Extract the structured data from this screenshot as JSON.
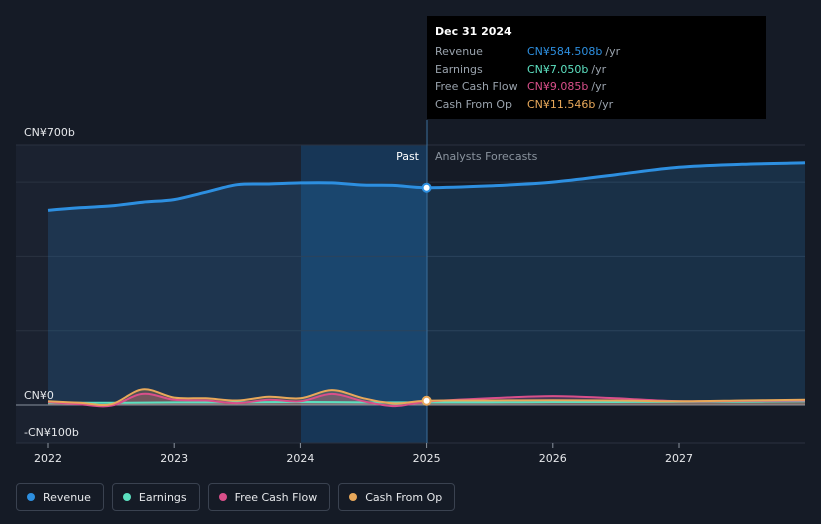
{
  "chart_data": {
    "type": "line",
    "x_ticks": [
      "2022",
      "2023",
      "2024",
      "2025",
      "2026",
      "2027"
    ],
    "y_labels": [
      "CN¥700b",
      "CN¥0",
      "-CN¥100b"
    ],
    "ylim": [
      -100,
      700
    ],
    "region_labels": {
      "past": "Past",
      "forecast": "Analysts Forecasts"
    },
    "series": [
      {
        "name": "Revenue",
        "color": "#2d8fe0",
        "x": [
          2022.0,
          2022.25,
          2022.5,
          2022.75,
          2023.0,
          2023.25,
          2023.5,
          2023.75,
          2024.0,
          2024.25,
          2024.5,
          2024.75,
          2025.0,
          2025.5,
          2026.0,
          2026.5,
          2027.0,
          2027.5,
          2028.0
        ],
        "values": [
          524,
          531,
          536,
          546,
          553,
          573,
          593,
          595,
          598,
          598,
          592,
          591,
          585,
          590,
          600,
          620,
          640,
          648,
          652
        ]
      },
      {
        "name": "Earnings",
        "color": "#5ce0c0",
        "x": [
          2022.0,
          2022.5,
          2023.0,
          2023.5,
          2024.0,
          2024.5,
          2025.0,
          2025.5,
          2026.0,
          2026.5,
          2027.0,
          2027.5,
          2028.0
        ],
        "values": [
          6,
          6,
          7,
          7,
          8,
          7,
          7,
          7,
          8,
          8,
          9,
          9,
          10
        ]
      },
      {
        "name": "Free Cash Flow",
        "color": "#d94f8a",
        "x": [
          2022.0,
          2022.25,
          2022.5,
          2022.75,
          2023.0,
          2023.25,
          2023.5,
          2023.75,
          2024.0,
          2024.25,
          2024.5,
          2024.75,
          2025.0,
          2025.5,
          2026.0,
          2026.5,
          2027.0,
          2027.5,
          2028.0
        ],
        "values": [
          8,
          2,
          -2,
          30,
          14,
          12,
          5,
          14,
          10,
          30,
          10,
          -3,
          9,
          18,
          24,
          18,
          10,
          11,
          12
        ]
      },
      {
        "name": "Cash From Op",
        "color": "#e8a85a",
        "x": [
          2022.0,
          2022.25,
          2022.5,
          2022.75,
          2023.0,
          2023.25,
          2023.5,
          2023.75,
          2024.0,
          2024.25,
          2024.5,
          2024.75,
          2025.0,
          2025.5,
          2026.0,
          2026.5,
          2027.0,
          2027.5,
          2028.0
        ],
        "values": [
          10,
          6,
          2,
          42,
          20,
          18,
          12,
          22,
          18,
          40,
          18,
          4,
          11.5,
          12,
          13,
          12,
          10,
          12,
          14
        ]
      }
    ],
    "legend_placement": "bottom-left",
    "grid": true
  },
  "tooltip": {
    "date": "Dec 31 2024",
    "rows": [
      {
        "label": "Revenue",
        "value": "CN¥584.508b",
        "unit": "/yr",
        "color": "#2d8fe0"
      },
      {
        "label": "Earnings",
        "value": "CN¥7.050b",
        "unit": "/yr",
        "color": "#5ce0c0"
      },
      {
        "label": "Free Cash Flow",
        "value": "CN¥9.085b",
        "unit": "/yr",
        "color": "#d94f8a"
      },
      {
        "label": "Cash From Op",
        "value": "CN¥11.546b",
        "unit": "/yr",
        "color": "#e8a85a"
      }
    ]
  },
  "legend": [
    {
      "label": "Revenue",
      "color": "#2d8fe0"
    },
    {
      "label": "Earnings",
      "color": "#5ce0c0"
    },
    {
      "label": "Free Cash Flow",
      "color": "#d94f8a"
    },
    {
      "label": "Cash From Op",
      "color": "#e8a85a"
    }
  ]
}
